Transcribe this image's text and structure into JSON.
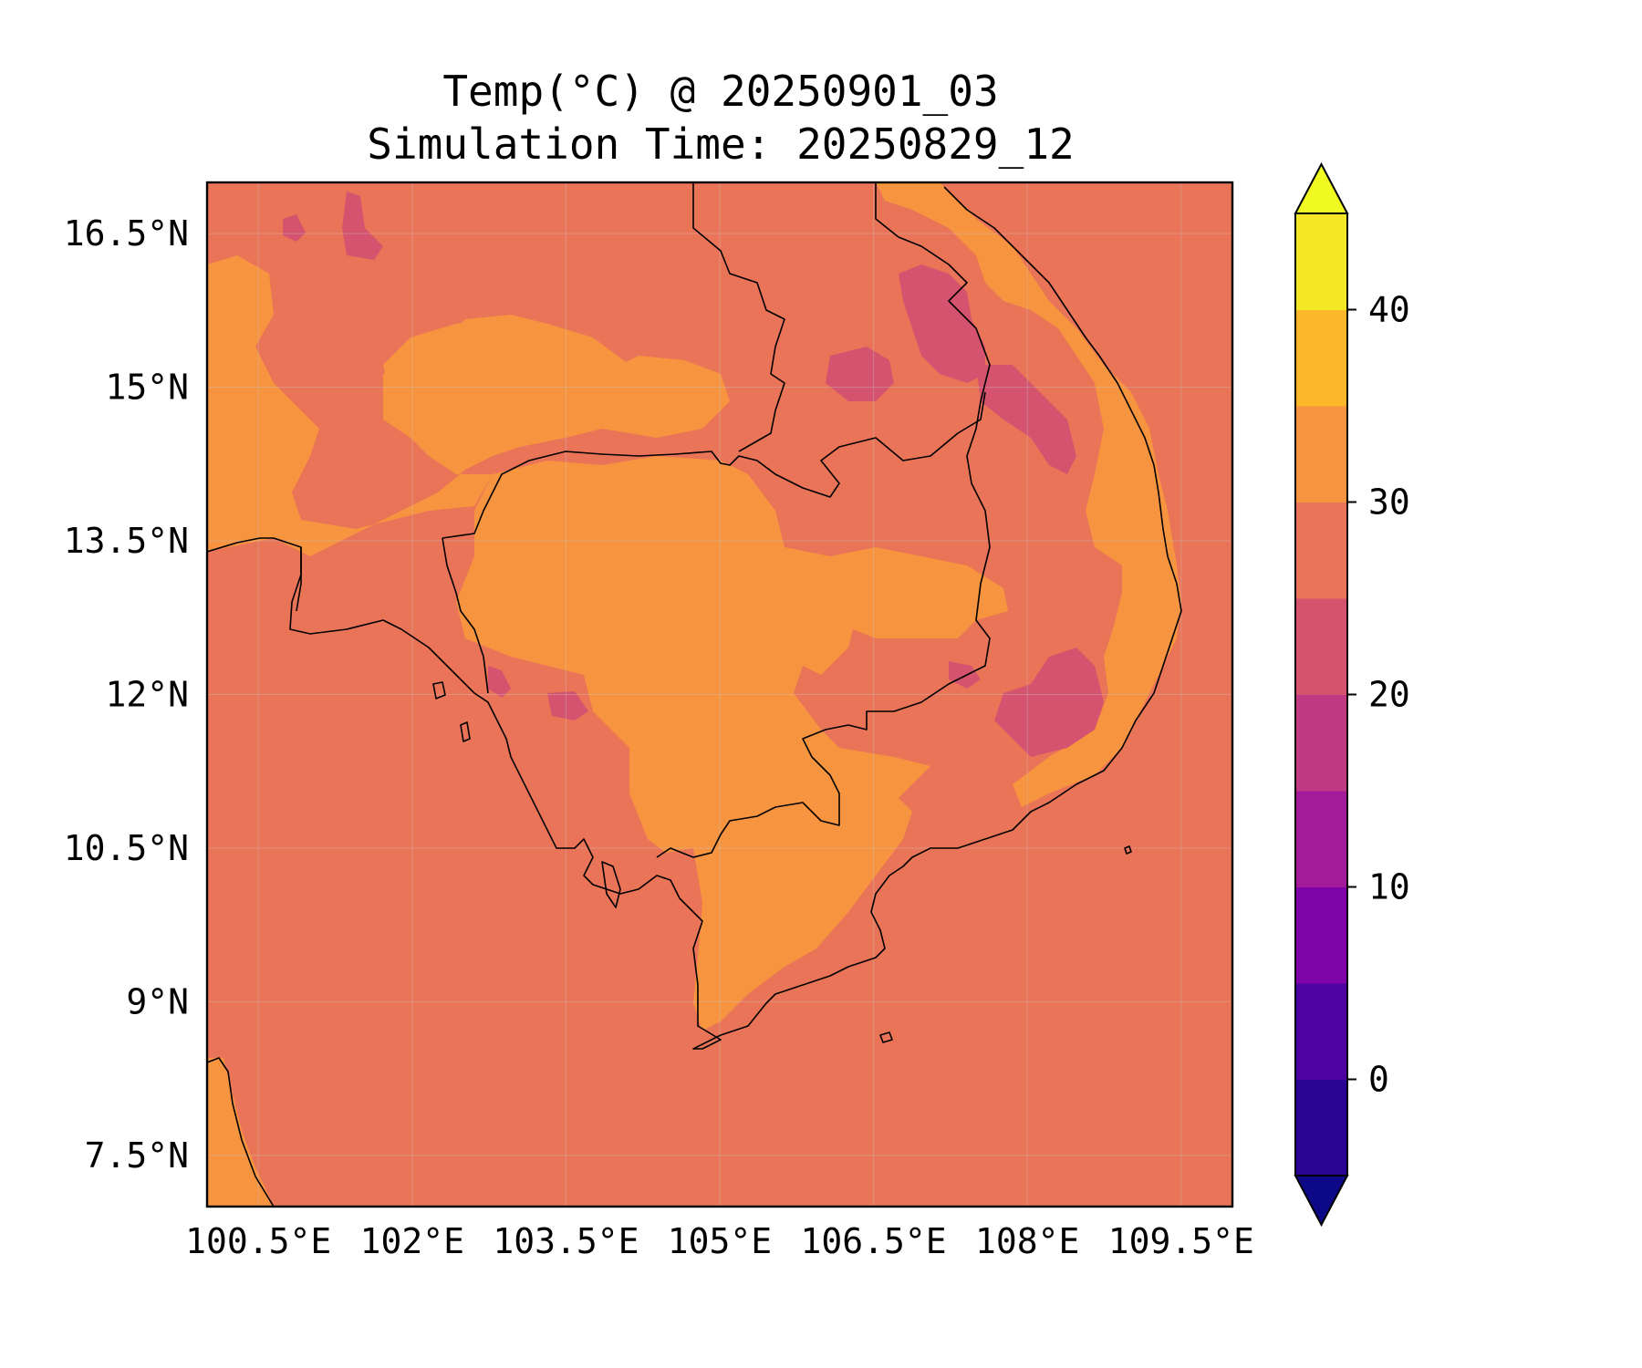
{
  "title": {
    "line1": "Temp(°C) @ 20250901_03",
    "line2": "Simulation Time: 20250829_12"
  },
  "map": {
    "lon_range": [
      100.0,
      110.0
    ],
    "lat_range": [
      7.0,
      17.0
    ],
    "lon_ticks": [
      100.5,
      102.0,
      103.5,
      105.0,
      106.5,
      108.0,
      109.5
    ],
    "lon_tick_labels": [
      "100.5°E",
      "102°E",
      "103.5°E",
      "105°E",
      "106.5°E",
      "108°E",
      "109.5°E"
    ],
    "lat_ticks": [
      16.5,
      15.0,
      13.5,
      12.0,
      10.5,
      9.0,
      7.5
    ],
    "lat_tick_labels": [
      "16.5°N",
      "15°N",
      "13.5°N",
      "12°N",
      "10.5°N",
      "9°N",
      "7.5°N"
    ],
    "gridlines": true
  },
  "colorbar": {
    "levels": [
      -5,
      0,
      5,
      10,
      15,
      20,
      25,
      30,
      35,
      40,
      45
    ],
    "colors": [
      "#2a0593",
      "#4d02a2",
      "#7e03a8",
      "#a11b9b",
      "#c03a83",
      "#d5536f",
      "#ea7457",
      "#f79440",
      "#fdb72b",
      "#f4e726"
    ],
    "under_color": "#0d0887",
    "over_color": "#f0f921",
    "extend": "both",
    "tick_values": [
      0,
      10,
      20,
      30,
      40
    ],
    "tick_labels": [
      "0",
      "10",
      "20",
      "30",
      "40"
    ]
  },
  "fill_colors": {
    "sea": "#ea7457",
    "warm": "#f79440",
    "cool": "#d5536f"
  }
}
